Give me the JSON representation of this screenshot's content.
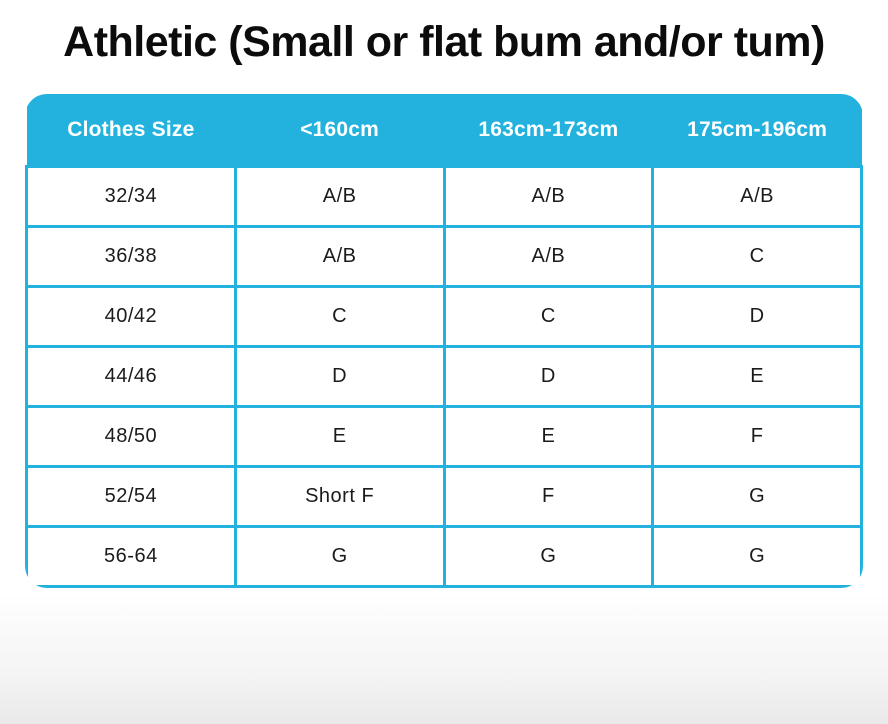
{
  "title": "Athletic (Small or flat bum and/or tum)",
  "colors": {
    "accent": "#23B2DD",
    "header_text": "#FFFFFF",
    "body_text": "#1B1B1B",
    "title_text": "#0C0C0C",
    "cell_background": "#FFFFFF",
    "page_bottom_fade": "#E9E9E9"
  },
  "chart_data": {
    "type": "table",
    "title": "Athletic (Small or flat bum and/or tum)",
    "columns": [
      "Clothes Size",
      "<160cm",
      "163cm-173cm",
      "175cm-196cm"
    ],
    "rows": [
      [
        "32/34",
        "A/B",
        "A/B",
        "A/B"
      ],
      [
        "36/38",
        "A/B",
        "A/B",
        "C"
      ],
      [
        "40/42",
        "C",
        "C",
        "D"
      ],
      [
        "44/46",
        "D",
        "D",
        "E"
      ],
      [
        "48/50",
        "E",
        "E",
        "F"
      ],
      [
        "52/54",
        "Short F",
        "F",
        "G"
      ],
      [
        "56-64",
        "G",
        "G",
        "G"
      ]
    ],
    "layout": {
      "header_background": "#23B2DD",
      "grid": true,
      "columns_equal_width": true
    }
  }
}
